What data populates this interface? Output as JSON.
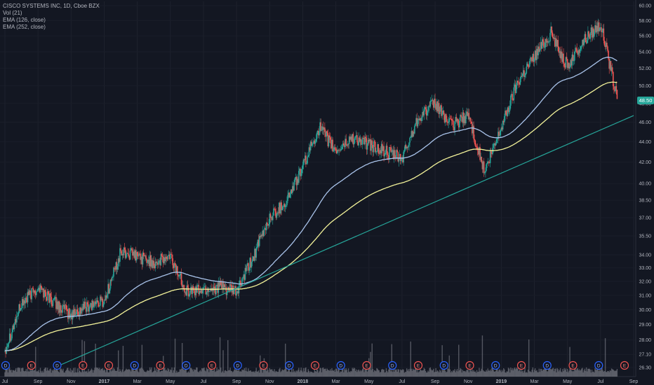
{
  "legend": {
    "symbol": "CISCO SYSTEMS INC, 1D, Cboe BZX",
    "vol": "Vol (21)",
    "ema1": "EMA (126, close)",
    "ema2": "EMA (252, close)"
  },
  "price_tag": "48.50",
  "colors": {
    "background": "#131722",
    "up": "#26a69a",
    "down": "#ef5350",
    "ema126": "#a9c3ea",
    "ema252": "#f3f39a",
    "trendline": "#26a69a",
    "volume": "#8a8d96",
    "dividend_marker": "#2962ff",
    "earnings_marker": "#ef5350"
  },
  "chart_data": {
    "type": "candlestick",
    "title": "CISCO SYSTEMS INC, 1D, Cboe BZX",
    "y_axis": {
      "scale": "log",
      "ticks": [
        "60.00",
        "58.00",
        "56.00",
        "54.00",
        "52.00",
        "50.00",
        "48.00",
        "46.00",
        "44.00",
        "42.00",
        "40.00",
        "38.50",
        "37.00",
        "35.50",
        "34.00",
        "33.00",
        "32.00",
        "31.00",
        "30.00",
        "29.00",
        "28.00",
        "27.10",
        "26.30"
      ],
      "range": [
        26.0,
        60.6
      ]
    },
    "x_axis": {
      "ticks": [
        {
          "label": "Jul",
          "bold": false
        },
        {
          "label": "Sep",
          "bold": false
        },
        {
          "label": "Nov",
          "bold": false
        },
        {
          "label": "2017",
          "bold": true
        },
        {
          "label": "Mar",
          "bold": false
        },
        {
          "label": "May",
          "bold": false
        },
        {
          "label": "Jul",
          "bold": false
        },
        {
          "label": "Sep",
          "bold": false
        },
        {
          "label": "Nov",
          "bold": false
        },
        {
          "label": "2018",
          "bold": true
        },
        {
          "label": "Mar",
          "bold": false
        },
        {
          "label": "May",
          "bold": false
        },
        {
          "label": "Jul",
          "bold": false
        },
        {
          "label": "Sep",
          "bold": false
        },
        {
          "label": "Nov",
          "bold": false
        },
        {
          "label": "2019",
          "bold": true
        },
        {
          "label": "Mar",
          "bold": false
        },
        {
          "label": "May",
          "bold": false
        },
        {
          "label": "Jul",
          "bold": false
        },
        {
          "label": "Sep",
          "bold": false
        }
      ]
    },
    "price_path": [
      {
        "date": "2016-07",
        "close": 27.4
      },
      {
        "date": "2016-08",
        "close": 30.4
      },
      {
        "date": "2016-09",
        "close": 31.6
      },
      {
        "date": "2016-10",
        "close": 30.5
      },
      {
        "date": "2016-11",
        "close": 29.6
      },
      {
        "date": "2016-12",
        "close": 30.3
      },
      {
        "date": "2017-01",
        "close": 30.6
      },
      {
        "date": "2017-02",
        "close": 34.2
      },
      {
        "date": "2017-03",
        "close": 33.9
      },
      {
        "date": "2017-04",
        "close": 33.4
      },
      {
        "date": "2017-05",
        "close": 33.8
      },
      {
        "date": "2017-06",
        "close": 31.3
      },
      {
        "date": "2017-07",
        "close": 31.4
      },
      {
        "date": "2017-08",
        "close": 31.6
      },
      {
        "date": "2017-09",
        "close": 31.2
      },
      {
        "date": "2017-10",
        "close": 33.8
      },
      {
        "date": "2017-11",
        "close": 37.0
      },
      {
        "date": "2017-12",
        "close": 38.4
      },
      {
        "date": "2018-01",
        "close": 41.5
      },
      {
        "date": "2018-02",
        "close": 45.5
      },
      {
        "date": "2018-03",
        "close": 43.0
      },
      {
        "date": "2018-04",
        "close": 44.4
      },
      {
        "date": "2018-05",
        "close": 43.7
      },
      {
        "date": "2018-06",
        "close": 43.0
      },
      {
        "date": "2018-07",
        "close": 42.3
      },
      {
        "date": "2018-08",
        "close": 46.6
      },
      {
        "date": "2018-09",
        "close": 48.0
      },
      {
        "date": "2018-10",
        "close": 45.6
      },
      {
        "date": "2018-11",
        "close": 46.8
      },
      {
        "date": "2018-12",
        "close": 41.0
      },
      {
        "date": "2019-01",
        "close": 45.5
      },
      {
        "date": "2019-02",
        "close": 50.5
      },
      {
        "date": "2019-03",
        "close": 53.5
      },
      {
        "date": "2019-04",
        "close": 56.4
      },
      {
        "date": "2019-05",
        "close": 52.2
      },
      {
        "date": "2019-06",
        "close": 55.5
      },
      {
        "date": "2019-07",
        "close": 57.6
      },
      {
        "date": "2019-08",
        "close": 48.5
      }
    ],
    "last_price": 48.5,
    "indicators": [
      "EMA 126",
      "EMA 252",
      "Volume (21)"
    ],
    "trendline": [
      {
        "date": "2016-10",
        "price": 26.3
      },
      {
        "date": "2019-09",
        "price": 46.7
      }
    ],
    "event_markers": [
      "D",
      "E",
      "D",
      "E",
      "E",
      "D",
      "E",
      "D",
      "E",
      "D",
      "E",
      "D",
      "E",
      "D",
      "E",
      "D",
      "E",
      "D",
      "E",
      "D",
      "E",
      "D",
      "E",
      "D",
      "E"
    ],
    "grid": true
  }
}
